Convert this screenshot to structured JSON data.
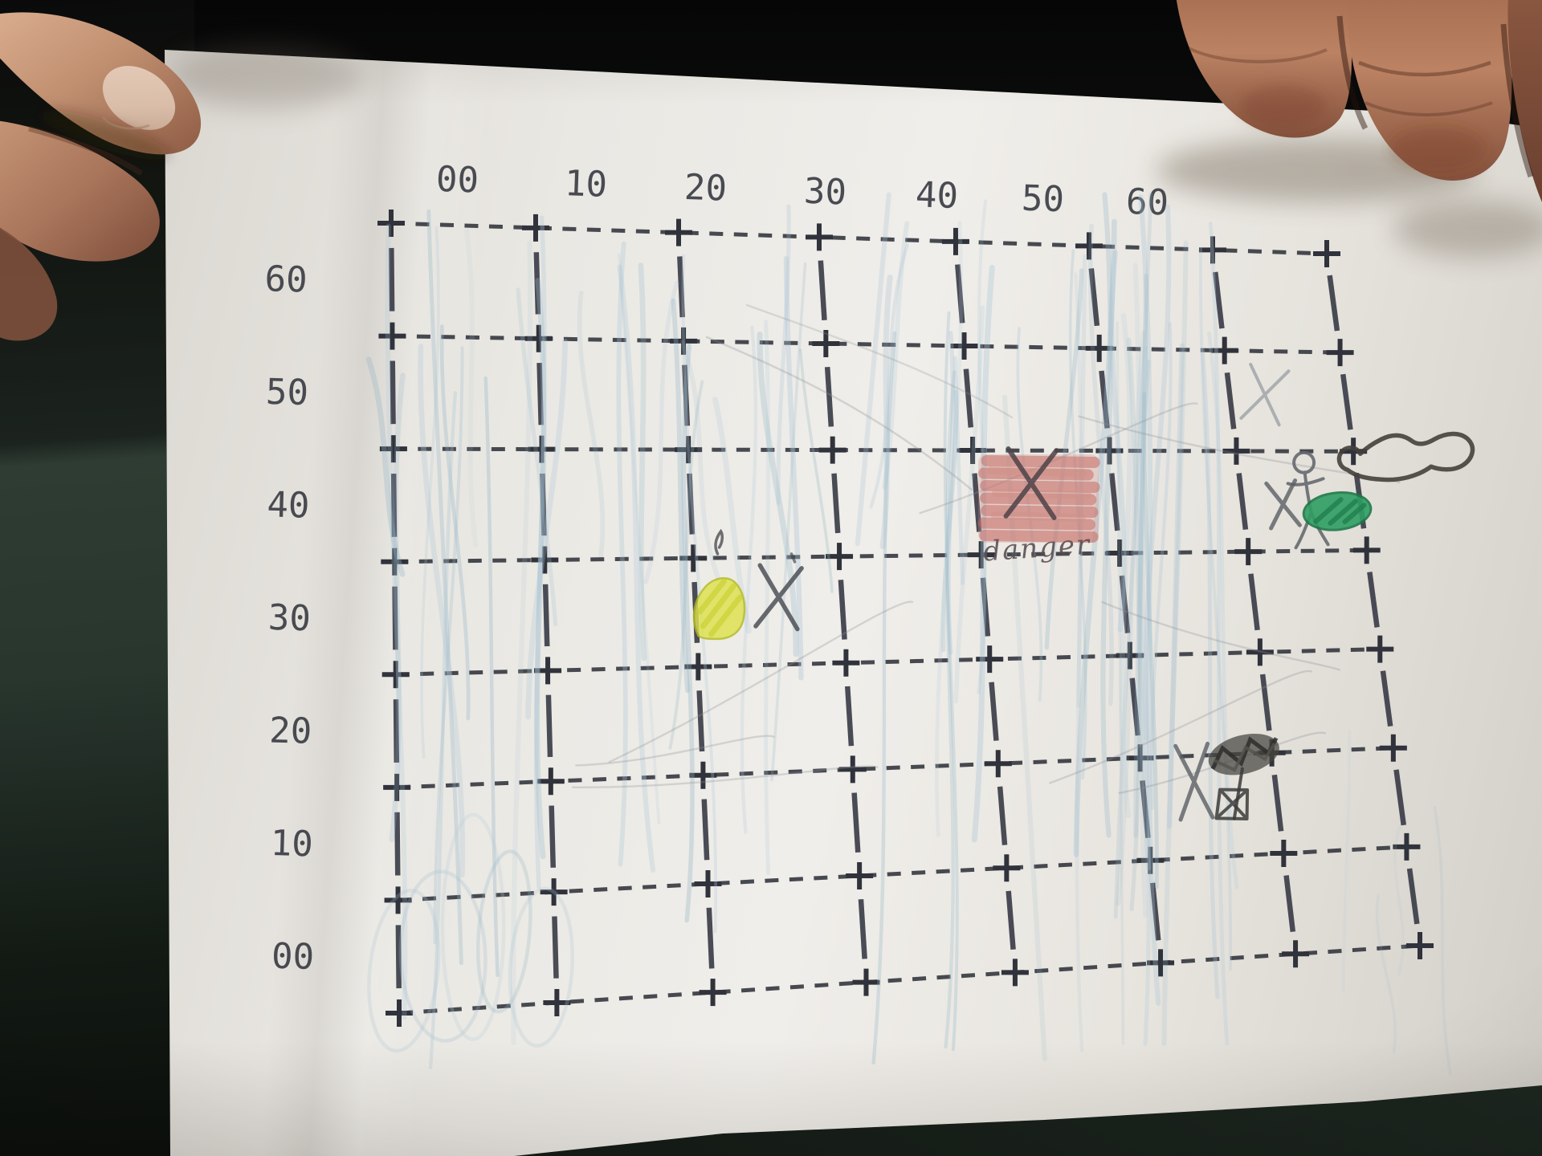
{
  "scene": {
    "description": "Photograph of a printed coordinate-grid treasure map worksheet held flat by two hands over a dark green floor",
    "paper_color": "#eae8e3",
    "ink_color": "#33363e",
    "floor_color": "#2e3c33",
    "background_color": "#0a0a0b"
  },
  "grid": {
    "top_labels": [
      "00",
      "10",
      "20",
      "30",
      "40",
      "50",
      "60"
    ],
    "left_labels": [
      "60",
      "50",
      "40",
      "30",
      "20",
      "10",
      "00"
    ],
    "columns": 7,
    "rows": 7,
    "line_style": "dashed rows with + intersections and short vertical bars"
  },
  "handwriting": {
    "danger_label": "danger"
  },
  "crayon_colors": {
    "blue_scribble": "#a9c4d6",
    "yellow": "#dde24d",
    "red": "#c4655e",
    "green": "#2f9e63",
    "pencil": "#5a5e64",
    "pen": "#45403b"
  },
  "markers": [
    {
      "name": "danger-zone",
      "type": "red crayon square with pencil X",
      "approx_coordinate": "40,40",
      "label": "danger",
      "color": "#c4655e"
    },
    {
      "name": "yellow-spot",
      "type": "yellow crayon blob with pencil X",
      "approx_coordinate": "20,30",
      "color": "#dde24d"
    },
    {
      "name": "faint-x",
      "type": "light pencil x",
      "approx_coordinate": "60,50",
      "color": "#9aa0a6"
    },
    {
      "name": "stick-figure",
      "type": "pencil stick figure with X",
      "approx_coordinate": "60,40",
      "color": "#63676d"
    },
    {
      "name": "green-spot",
      "type": "green crayon blob on grid edge",
      "approx_coordinate": "60,40",
      "color": "#2f9e63"
    },
    {
      "name": "boot-doodle",
      "type": "pen shoe outline in right margin",
      "approx_coordinate": "off-grid right",
      "color": "#45403b"
    },
    {
      "name": "treasure-scribble",
      "type": "dark scribble, stem and boxed X with pencil X",
      "approx_coordinate": "55,15",
      "color": "#45443f"
    }
  ],
  "hands": [
    {
      "name": "hand-left",
      "position": "top-left corner pinching paper"
    },
    {
      "name": "hand-right",
      "position": "top-right fingertips pressing paper"
    }
  ]
}
